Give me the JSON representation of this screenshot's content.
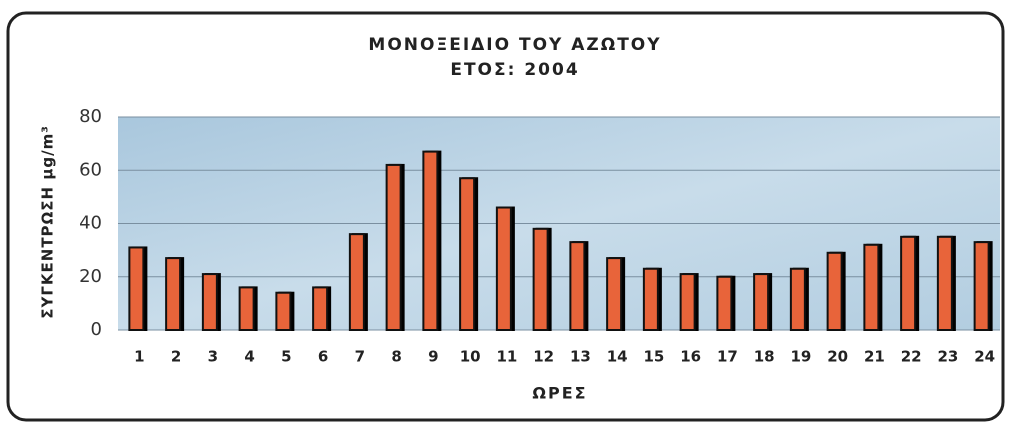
{
  "chart_data": {
    "type": "bar",
    "title": "ΜΟΝΟΞΕΙΔΙΟ ΤΟΥ ΑΖΩΤΟΥ",
    "subtitle": "ΕΤΟΣ: 2004",
    "x_label": "ΩΡΕΣ",
    "y_label": "ΣΥΓΚΕΝΤΡΩΣΗ μg/m³",
    "categories": [
      "1",
      "2",
      "3",
      "4",
      "5",
      "6",
      "7",
      "8",
      "9",
      "10",
      "11",
      "12",
      "13",
      "14",
      "15",
      "16",
      "17",
      "18",
      "19",
      "20",
      "21",
      "22",
      "23",
      "24"
    ],
    "values": [
      31,
      27,
      21,
      16,
      14,
      16,
      36,
      62,
      67,
      57,
      46,
      38,
      33,
      27,
      23,
      21,
      20,
      21,
      23,
      29,
      32,
      35,
      35,
      33
    ],
    "color": "#e8643a",
    "ylim": [
      0,
      80
    ],
    "yticks": [
      0,
      20,
      40,
      60,
      80
    ],
    "grid": true
  }
}
